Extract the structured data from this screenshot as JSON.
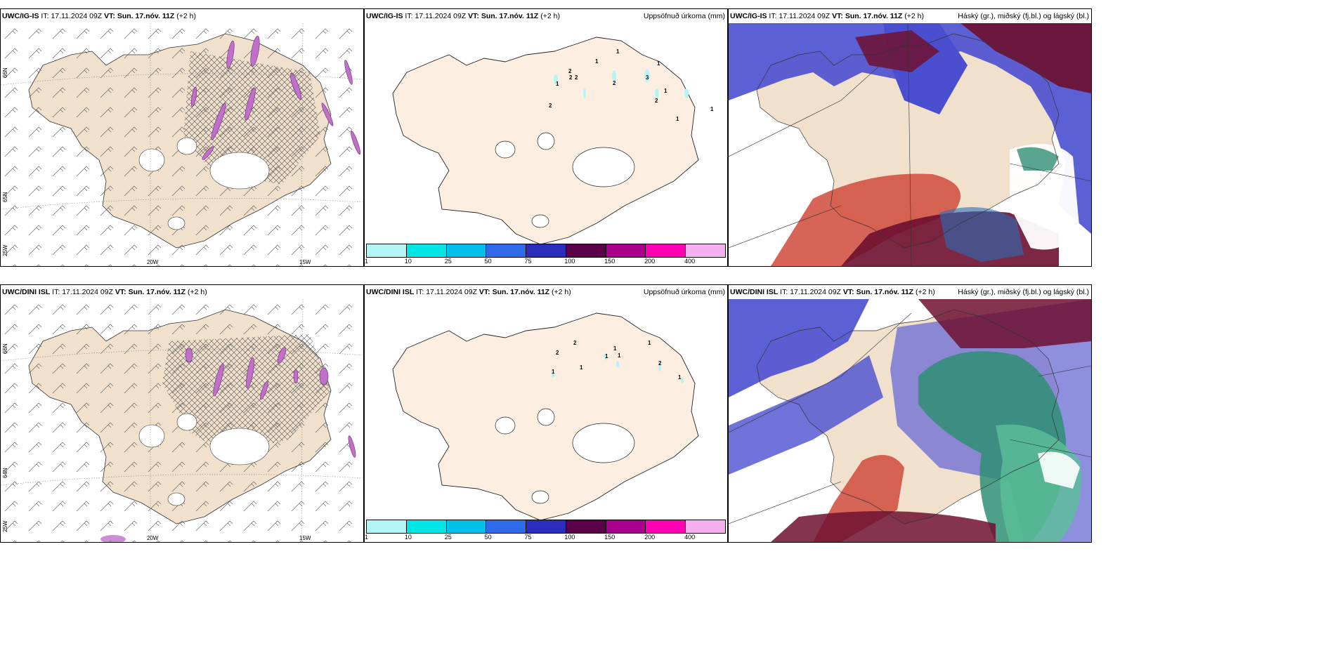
{
  "rows": [
    {
      "model": "UWC/IG-IS",
      "panels": [
        {
          "it_label": "IT:",
          "it_value": "17.11.2024 09Z",
          "vt_label": "VT:",
          "vt_value": "Sun. 17.nóv. 11Z",
          "lead": "(+2 h)",
          "right_title": ""
        },
        {
          "it_label": "IT:",
          "it_value": "17.11.2024 09Z",
          "vt_label": "VT:",
          "vt_value": "Sun. 17.nóv. 11Z",
          "lead": "(+2 h)",
          "right_title": "Uppsöfnuð úrkoma (mm)"
        },
        {
          "it_label": "IT:",
          "it_value": "17.11.2024 09Z",
          "vt_label": "VT:",
          "vt_value": "Sun. 17.nóv. 11Z",
          "lead": "(+2 h)",
          "right_title": "Háský (gr.), miðský (fj.bl.) og lágský (bl.)"
        }
      ],
      "precip_amounts": [
        "1",
        "1",
        "1",
        "2",
        "2",
        "2",
        "3",
        "1",
        "2",
        "1",
        "2",
        "2",
        "1",
        "1"
      ]
    },
    {
      "model": "UWC/DINI ISL",
      "panels": [
        {
          "it_label": "IT:",
          "it_value": "17.11.2024 09Z",
          "vt_label": "VT:",
          "vt_value": "Sun. 17.nóv. 11Z",
          "lead": "(+2 h)",
          "right_title": ""
        },
        {
          "it_label": "IT:",
          "it_value": "17.11.2024 09Z",
          "vt_label": "VT:",
          "vt_value": "Sun. 17.nóv. 11Z",
          "lead": "(+2 h)",
          "right_title": "Uppsöfnuð úrkoma (mm)"
        },
        {
          "it_label": "IT:",
          "it_value": "17.11.2024 09Z",
          "vt_label": "VT:",
          "vt_value": "Sun. 17.nóv. 11Z",
          "lead": "(+2 h)",
          "right_title": "Háský (gr.), miðský (fj.bl.) og lágský (bl.)"
        }
      ],
      "precip_amounts": [
        "2",
        "2",
        "1",
        "1",
        "1",
        "1",
        "1",
        "2",
        "1",
        "1"
      ]
    }
  ],
  "wind_map": {
    "lon_labels": [
      "20W",
      "15W"
    ],
    "lat_labels": [
      "66N",
      "65N",
      "64N"
    ],
    "corner_label": "25W"
  },
  "colorbar": {
    "ticks": [
      "1",
      "10",
      "25",
      "50",
      "75",
      "100",
      "150",
      "200",
      "400"
    ],
    "colors": [
      "#b3f5f5",
      "#00e5e5",
      "#00bfea",
      "#2f6ae8",
      "#2a2dbc",
      "#5a0048",
      "#a8008c",
      "#ff00b4",
      "#f5b0f0"
    ]
  },
  "colors": {
    "land": "#f0e0cc",
    "land_precip": "#fcefe2",
    "cloud_high": "#6e1030",
    "cloud_mid": "#2f8f73",
    "cloud_low": "#4a4fd0",
    "cloud_high_light": "#d04a3a",
    "convective": "#c070c8"
  }
}
